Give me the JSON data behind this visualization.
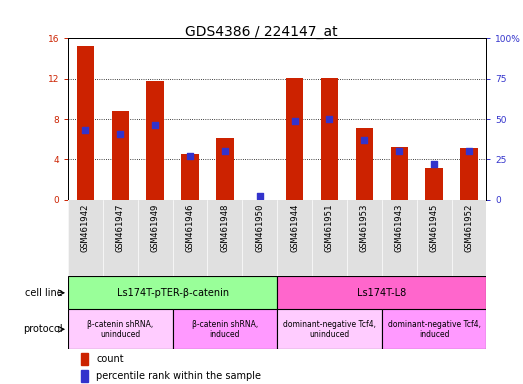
{
  "title": "GDS4386 / 224147_at",
  "samples": [
    "GSM461942",
    "GSM461947",
    "GSM461949",
    "GSM461946",
    "GSM461948",
    "GSM461950",
    "GSM461944",
    "GSM461951",
    "GSM461953",
    "GSM461943",
    "GSM461945",
    "GSM461952"
  ],
  "count_values": [
    15.2,
    8.8,
    11.8,
    4.5,
    6.1,
    0.0,
    12.1,
    12.1,
    7.1,
    5.2,
    3.1,
    5.1
  ],
  "percentile_values": [
    43,
    41,
    46,
    27,
    30,
    2,
    49,
    50,
    37,
    30,
    22,
    30
  ],
  "left_ylim": [
    0,
    16
  ],
  "right_ylim": [
    0,
    100
  ],
  "left_yticks": [
    0,
    4,
    8,
    12,
    16
  ],
  "right_yticks": [
    0,
    25,
    50,
    75,
    100
  ],
  "right_yticklabels": [
    "0",
    "25",
    "50",
    "75",
    "100%"
  ],
  "bar_color": "#CC2200",
  "blue_color": "#3333CC",
  "grid_color": "#000000",
  "xtick_bg": "#DDDDDD",
  "cell_line_groups": [
    {
      "label": "Ls174T-pTER-β-catenin",
      "start": 0,
      "end": 6,
      "color": "#99FF99"
    },
    {
      "label": "Ls174T-L8",
      "start": 6,
      "end": 12,
      "color": "#FF66CC"
    }
  ],
  "protocol_groups": [
    {
      "label": "β-catenin shRNA,\nuninduced",
      "start": 0,
      "end": 3,
      "color": "#FFCCFF"
    },
    {
      "label": "β-catenin shRNA,\ninduced",
      "start": 3,
      "end": 6,
      "color": "#FF99FF"
    },
    {
      "label": "dominant-negative Tcf4,\nuninduced",
      "start": 6,
      "end": 9,
      "color": "#FFCCFF"
    },
    {
      "label": "dominant-negative Tcf4,\ninduced",
      "start": 9,
      "end": 12,
      "color": "#FF99FF"
    }
  ],
  "legend_count_label": "count",
  "legend_pct_label": "percentile rank within the sample",
  "cell_line_label": "cell line",
  "protocol_label": "protocol",
  "bar_width": 0.5,
  "title_fontsize": 10,
  "tick_fontsize": 6.5,
  "label_fontsize": 7.5
}
